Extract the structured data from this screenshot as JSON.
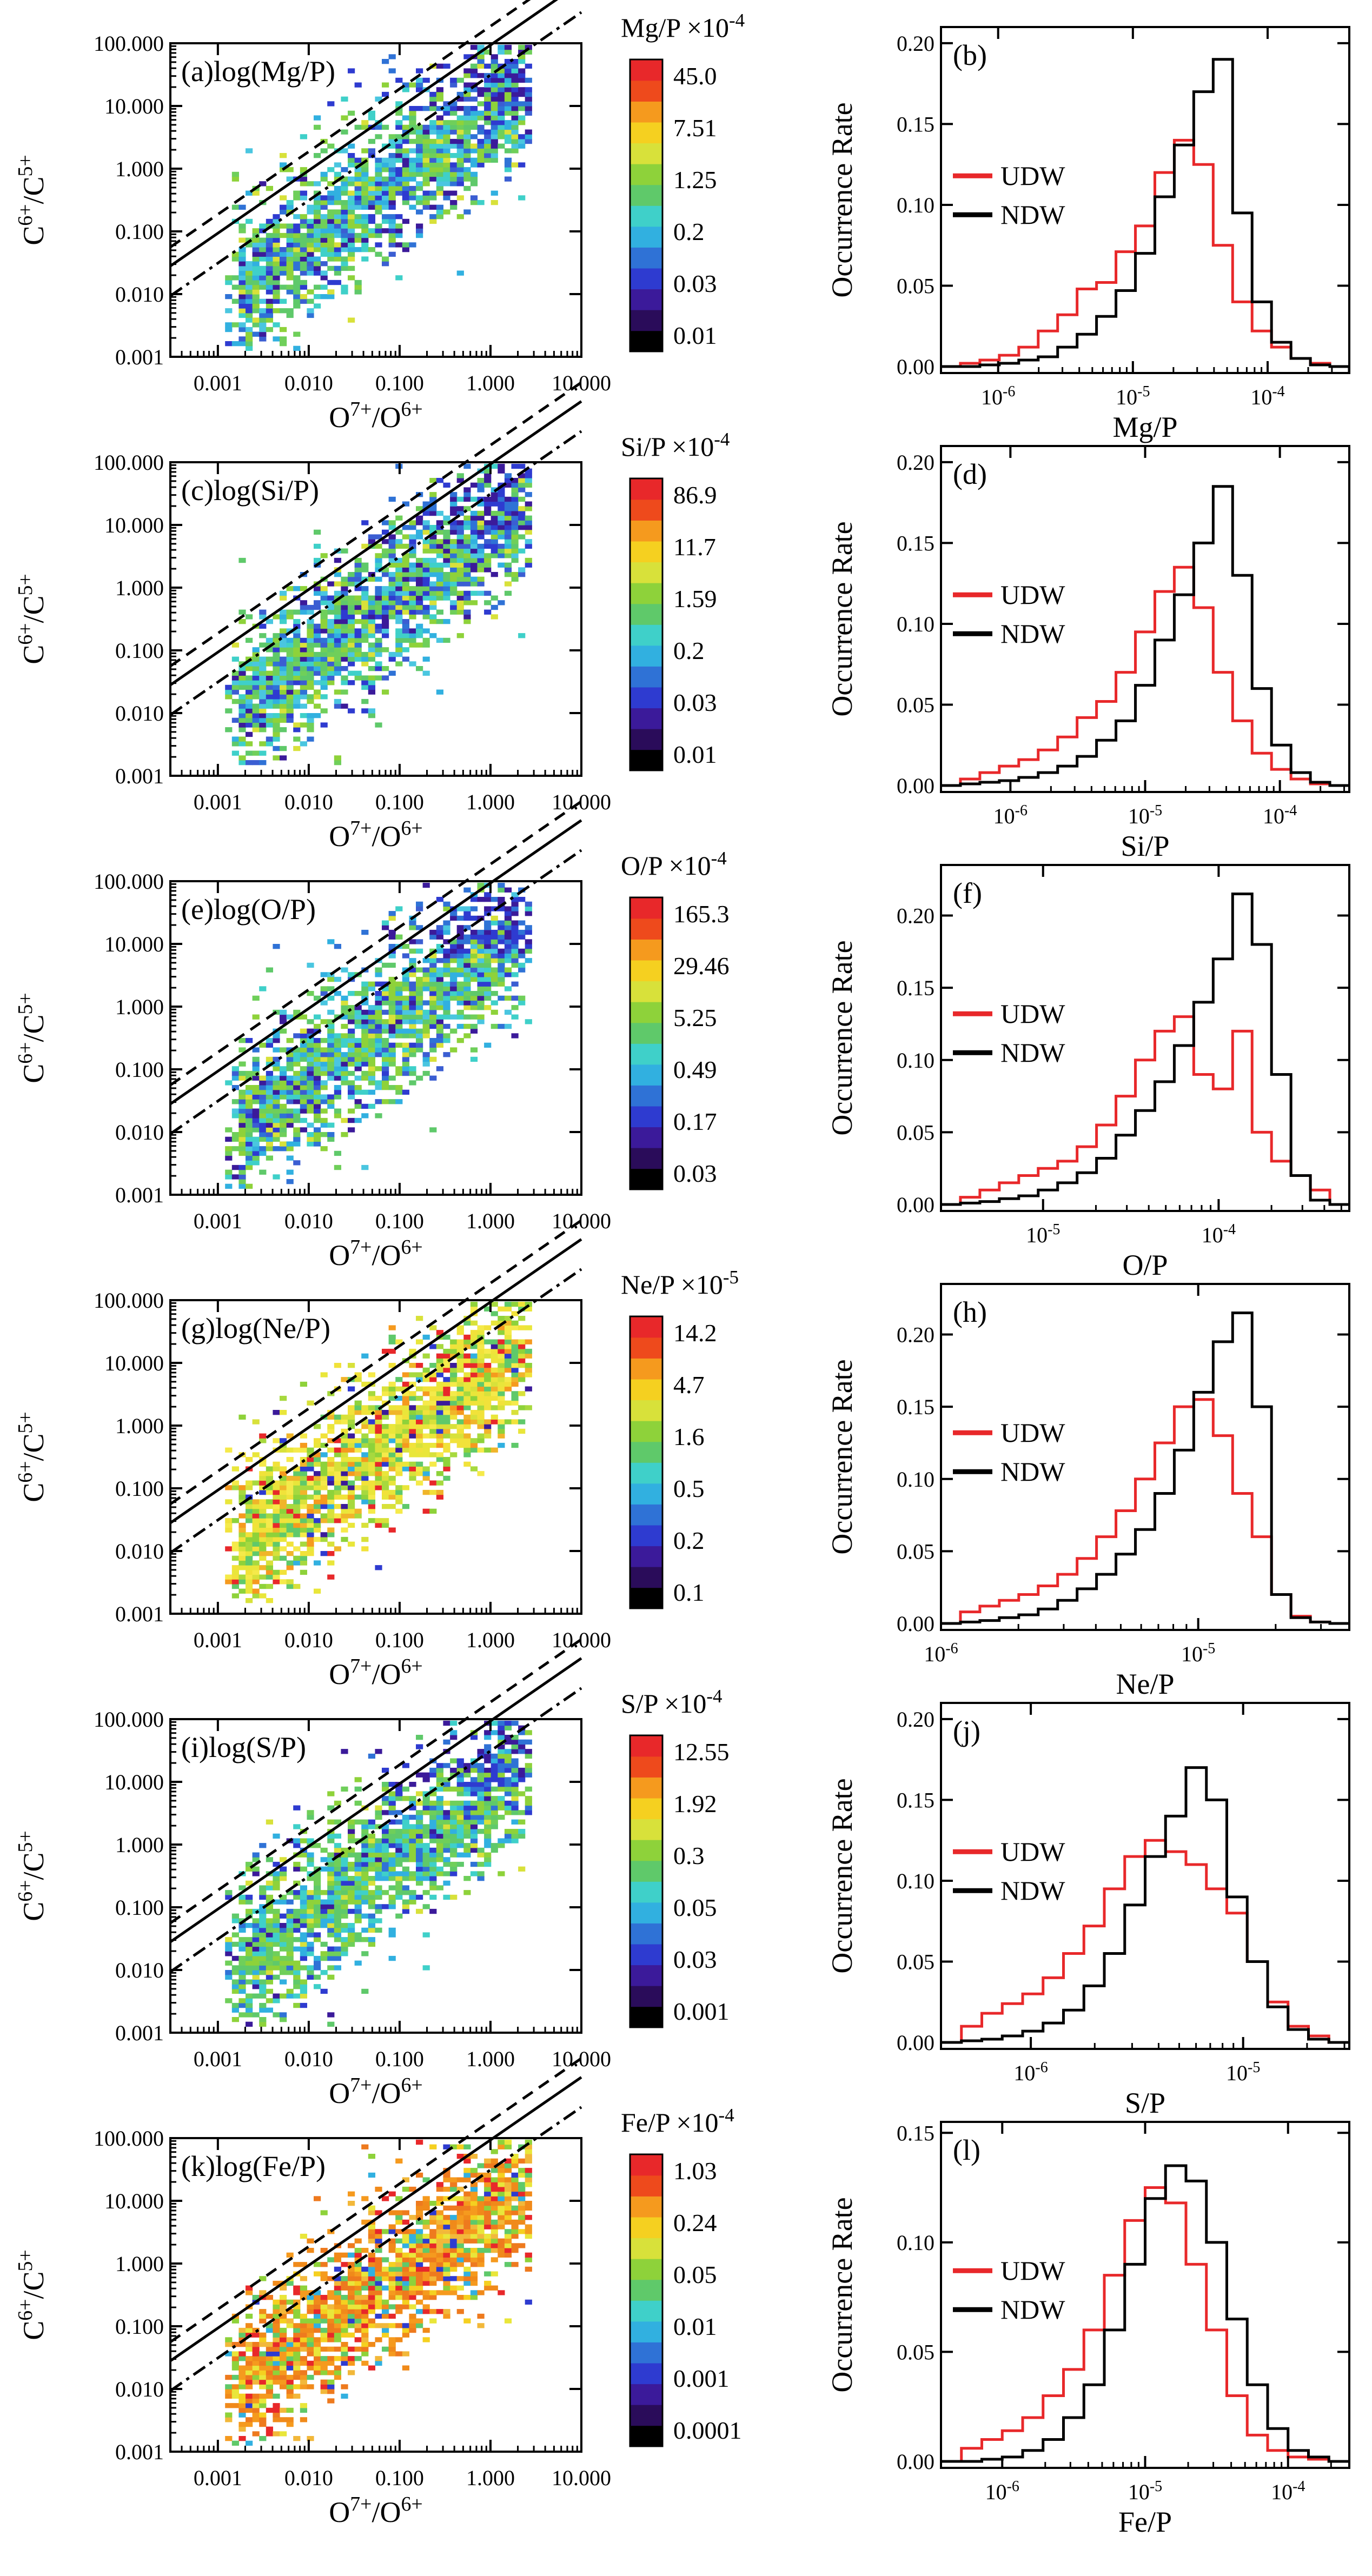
{
  "colors": {
    "udw": "#e8282a",
    "ndw": "#000000",
    "axis": "#000000"
  },
  "chart_data": [
    {
      "type": "heatmap",
      "title": "(a)log(Mg/P)",
      "xlabel": "O<sup>7+</sup>/O<sup>6+</sup>",
      "ylabel": "C<sup>6+</sup>/C<sup>5+</sup>",
      "xlim": [
        0.0003,
        10
      ],
      "ylim": [
        0.001,
        100
      ],
      "xticks": [
        "0.001",
        "0.010",
        "0.100",
        "1.000",
        "10.000"
      ],
      "yticks": [
        "100.000",
        "10.000",
        "1.000",
        "0.100",
        "0.010",
        "0.001"
      ],
      "lines": [
        "dashed",
        "solid",
        "dash-dot"
      ],
      "colorbar": {
        "title": "Mg/P",
        "scale": "×10",
        "exponent": "-4",
        "ticks": [
          "45.0",
          "7.51",
          "1.25",
          "0.2",
          "0.03",
          "0.01"
        ]
      },
      "palette": "mid"
    },
    {
      "type": "histogram",
      "title": "(b)",
      "xlabel": "Mg/P",
      "ylabel": "Occurrence Rate",
      "ylim": [
        0,
        0.21
      ],
      "yticks": [
        "0.20",
        "0.15",
        "0.10",
        "0.05",
        "0.00"
      ],
      "xtick_exponents": [
        "-6",
        "-5",
        "-4"
      ],
      "xtick_positions": [
        0.14,
        0.47,
        0.8
      ],
      "series": [
        {
          "name": "UDW",
          "values": [
            0.0,
            0.002,
            0.004,
            0.007,
            0.012,
            0.022,
            0.032,
            0.048,
            0.052,
            0.071,
            0.087,
            0.12,
            0.14,
            0.125,
            0.075,
            0.04,
            0.022,
            0.012,
            0.005,
            0.002,
            0.0
          ]
        },
        {
          "name": "NDW",
          "values": [
            0.0,
            0.0,
            0.001,
            0.002,
            0.004,
            0.006,
            0.012,
            0.02,
            0.031,
            0.047,
            0.07,
            0.105,
            0.137,
            0.17,
            0.19,
            0.095,
            0.04,
            0.015,
            0.005,
            0.001,
            0.0
          ]
        }
      ]
    },
    {
      "type": "heatmap",
      "title": "(c)log(Si/P)",
      "xlabel": "O<sup>7+</sup>/O<sup>6+</sup>",
      "ylabel": "C<sup>6+</sup>/C<sup>5+</sup>",
      "xlim": [
        0.0003,
        10
      ],
      "ylim": [
        0.001,
        100
      ],
      "xticks": [
        "0.001",
        "0.010",
        "0.100",
        "1.000",
        "10.000"
      ],
      "yticks": [
        "100.000",
        "10.000",
        "1.000",
        "0.100",
        "0.010",
        "0.001"
      ],
      "lines": [
        "dashed",
        "solid",
        "dash-dot"
      ],
      "colorbar": {
        "title": "Si/P",
        "scale": "×10",
        "exponent": "-4",
        "ticks": [
          "86.9",
          "11.7",
          "1.59",
          "0.2",
          "0.03",
          "0.01"
        ]
      },
      "palette": "mid"
    },
    {
      "type": "histogram",
      "title": "(d)",
      "xlabel": "Si/P",
      "ylabel": "Occurrence Rate",
      "ylim": [
        0,
        0.21
      ],
      "yticks": [
        "0.20",
        "0.15",
        "0.10",
        "0.05",
        "0.00"
      ],
      "xtick_exponents": [
        "-6",
        "-5",
        "-4"
      ],
      "xtick_positions": [
        0.17,
        0.5,
        0.83
      ],
      "series": [
        {
          "name": "UDW",
          "values": [
            0.0,
            0.004,
            0.008,
            0.012,
            0.016,
            0.022,
            0.03,
            0.042,
            0.052,
            0.07,
            0.095,
            0.12,
            0.135,
            0.11,
            0.07,
            0.04,
            0.02,
            0.01,
            0.004,
            0.001,
            0.0
          ]
        },
        {
          "name": "NDW",
          "values": [
            0.0,
            0.001,
            0.002,
            0.003,
            0.005,
            0.008,
            0.012,
            0.018,
            0.028,
            0.04,
            0.062,
            0.09,
            0.118,
            0.15,
            0.185,
            0.13,
            0.06,
            0.025,
            0.008,
            0.002,
            0.0
          ]
        }
      ]
    },
    {
      "type": "heatmap",
      "title": "(e)log(O/P)",
      "xlabel": "O<sup>7+</sup>/O<sup>6+</sup>",
      "ylabel": "C<sup>6+</sup>/C<sup>5+</sup>",
      "xlim": [
        0.0003,
        10
      ],
      "ylim": [
        0.001,
        100
      ],
      "xticks": [
        "0.001",
        "0.010",
        "0.100",
        "1.000",
        "10.000"
      ],
      "yticks": [
        "100.000",
        "10.000",
        "1.000",
        "0.100",
        "0.010",
        "0.001"
      ],
      "lines": [
        "dashed",
        "solid",
        "dash-dot"
      ],
      "colorbar": {
        "title": "O/P",
        "scale": "×10",
        "exponent": "-4",
        "ticks": [
          "165.3",
          "29.46",
          "5.25",
          "0.49",
          "0.17",
          "0.03"
        ]
      },
      "palette": "mid"
    },
    {
      "type": "histogram",
      "title": "(f)",
      "xlabel": "O/P",
      "ylabel": "Occurrence Rate",
      "ylim": [
        0,
        0.235
      ],
      "yticks": [
        "0.20",
        "0.15",
        "0.10",
        "0.05",
        "0.00"
      ],
      "xtick_exponents": [
        "-5",
        "-4"
      ],
      "xtick_positions": [
        0.25,
        0.68
      ],
      "series": [
        {
          "name": "UDW",
          "values": [
            0.0,
            0.005,
            0.01,
            0.015,
            0.02,
            0.025,
            0.03,
            0.04,
            0.055,
            0.075,
            0.1,
            0.12,
            0.13,
            0.09,
            0.08,
            0.12,
            0.05,
            0.03,
            0.02,
            0.01,
            0.0
          ]
        },
        {
          "name": "NDW",
          "values": [
            0.0,
            0.001,
            0.002,
            0.004,
            0.006,
            0.01,
            0.015,
            0.022,
            0.032,
            0.048,
            0.065,
            0.085,
            0.11,
            0.14,
            0.17,
            0.215,
            0.18,
            0.09,
            0.02,
            0.003,
            0.0
          ]
        }
      ]
    },
    {
      "type": "heatmap",
      "title": "(g)log(Ne/P)",
      "xlabel": "O<sup>7+</sup>/O<sup>6+</sup>",
      "ylabel": "C<sup>6+</sup>/C<sup>5+</sup>",
      "xlim": [
        0.0003,
        10
      ],
      "ylim": [
        0.001,
        100
      ],
      "xticks": [
        "0.001",
        "0.010",
        "0.100",
        "1.000",
        "10.000"
      ],
      "yticks": [
        "100.000",
        "10.000",
        "1.000",
        "0.100",
        "0.010",
        "0.001"
      ],
      "lines": [
        "dashed",
        "solid",
        "dash-dot"
      ],
      "colorbar": {
        "title": "Ne/P",
        "scale": "×10",
        "exponent": "-5",
        "ticks": [
          "14.2",
          "4.7",
          "1.6",
          "0.5",
          "0.2",
          "0.1"
        ]
      },
      "palette": "yellow"
    },
    {
      "type": "histogram",
      "title": "(h)",
      "xlabel": "Ne/P",
      "ylabel": "Occurrence Rate",
      "ylim": [
        0,
        0.235
      ],
      "yticks": [
        "0.20",
        "0.15",
        "0.10",
        "0.05",
        "0.00"
      ],
      "xtick_exponents": [
        "-6",
        "-5"
      ],
      "xtick_positions": [
        0.0,
        0.63
      ],
      "series": [
        {
          "name": "UDW",
          "values": [
            0.0,
            0.008,
            0.012,
            0.016,
            0.02,
            0.026,
            0.034,
            0.045,
            0.06,
            0.078,
            0.1,
            0.125,
            0.15,
            0.155,
            0.13,
            0.09,
            0.06,
            0.02,
            0.005,
            0.001,
            0.0
          ]
        },
        {
          "name": "NDW",
          "values": [
            0.0,
            0.001,
            0.002,
            0.004,
            0.006,
            0.01,
            0.016,
            0.024,
            0.034,
            0.048,
            0.065,
            0.09,
            0.12,
            0.16,
            0.195,
            0.215,
            0.15,
            0.02,
            0.004,
            0.001,
            0.0
          ]
        }
      ]
    },
    {
      "type": "heatmap",
      "title": "(i)log(S/P)",
      "xlabel": "O<sup>7+</sup>/O<sup>6+</sup>",
      "ylabel": "C<sup>6+</sup>/C<sup>5+</sup>",
      "xlim": [
        0.0003,
        10
      ],
      "ylim": [
        0.001,
        100
      ],
      "xticks": [
        "0.001",
        "0.010",
        "0.100",
        "1.000",
        "10.000"
      ],
      "yticks": [
        "100.000",
        "10.000",
        "1.000",
        "0.100",
        "0.010",
        "0.001"
      ],
      "lines": [
        "dashed",
        "solid",
        "dash-dot"
      ],
      "colorbar": {
        "title": "S/P",
        "scale": "×10",
        "exponent": "-4",
        "ticks": [
          "12.55",
          "1.92",
          "0.3",
          "0.05",
          "0.03",
          "0.001"
        ]
      },
      "palette": "green"
    },
    {
      "type": "histogram",
      "title": "(j)",
      "xlabel": "S/P",
      "ylabel": "Occurrence Rate",
      "ylim": [
        0,
        0.21
      ],
      "yticks": [
        "0.20",
        "0.15",
        "0.10",
        "0.05",
        "0.00"
      ],
      "xtick_exponents": [
        "-6",
        "-5"
      ],
      "xtick_positions": [
        0.22,
        0.74
      ],
      "series": [
        {
          "name": "UDW",
          "values": [
            0.0,
            0.01,
            0.018,
            0.024,
            0.03,
            0.04,
            0.055,
            0.072,
            0.095,
            0.115,
            0.125,
            0.118,
            0.11,
            0.095,
            0.08,
            0.05,
            0.025,
            0.01,
            0.004,
            0.0
          ]
        },
        {
          "name": "NDW",
          "values": [
            0.0,
            0.001,
            0.002,
            0.004,
            0.007,
            0.012,
            0.02,
            0.035,
            0.055,
            0.085,
            0.115,
            0.14,
            0.17,
            0.15,
            0.09,
            0.05,
            0.022,
            0.008,
            0.002,
            0.0
          ]
        }
      ]
    },
    {
      "type": "heatmap",
      "title": "(k)log(Fe/P)",
      "xlabel": "O<sup>7+</sup>/O<sup>6+</sup>",
      "ylabel": "C<sup>6+</sup>/C<sup>5+</sup>",
      "xlim": [
        0.0003,
        10
      ],
      "ylim": [
        0.001,
        100
      ],
      "xticks": [
        "0.001",
        "0.010",
        "0.100",
        "1.000",
        "10.000"
      ],
      "yticks": [
        "100.000",
        "10.000",
        "1.000",
        "0.100",
        "0.010",
        "0.001"
      ],
      "lines": [
        "dashed",
        "solid",
        "dash-dot"
      ],
      "colorbar": {
        "title": "Fe/P",
        "scale": "×10",
        "exponent": "-4",
        "ticks": [
          "1.03",
          "0.24",
          "0.05",
          "0.01",
          "0.001",
          "0.0001"
        ]
      },
      "palette": "orange"
    },
    {
      "type": "histogram",
      "title": "(l)",
      "xlabel": "Fe/P",
      "ylabel": "Occurrence Rate",
      "ylim": [
        0,
        0.155
      ],
      "yticks": [
        "0.15",
        "0.10",
        "0.05",
        "0.00"
      ],
      "xtick_exponents": [
        "-6",
        "-5",
        "-4"
      ],
      "xtick_positions": [
        0.15,
        0.5,
        0.85
      ],
      "series": [
        {
          "name": "UDW",
          "values": [
            0.0,
            0.006,
            0.01,
            0.014,
            0.02,
            0.03,
            0.042,
            0.06,
            0.085,
            0.11,
            0.125,
            0.118,
            0.09,
            0.06,
            0.03,
            0.012,
            0.005,
            0.002,
            0.001,
            0.0
          ]
        },
        {
          "name": "NDW",
          "values": [
            0.0,
            0.0,
            0.001,
            0.002,
            0.005,
            0.01,
            0.02,
            0.035,
            0.06,
            0.09,
            0.12,
            0.135,
            0.128,
            0.1,
            0.065,
            0.035,
            0.015,
            0.005,
            0.002,
            0.0
          ]
        }
      ]
    }
  ]
}
